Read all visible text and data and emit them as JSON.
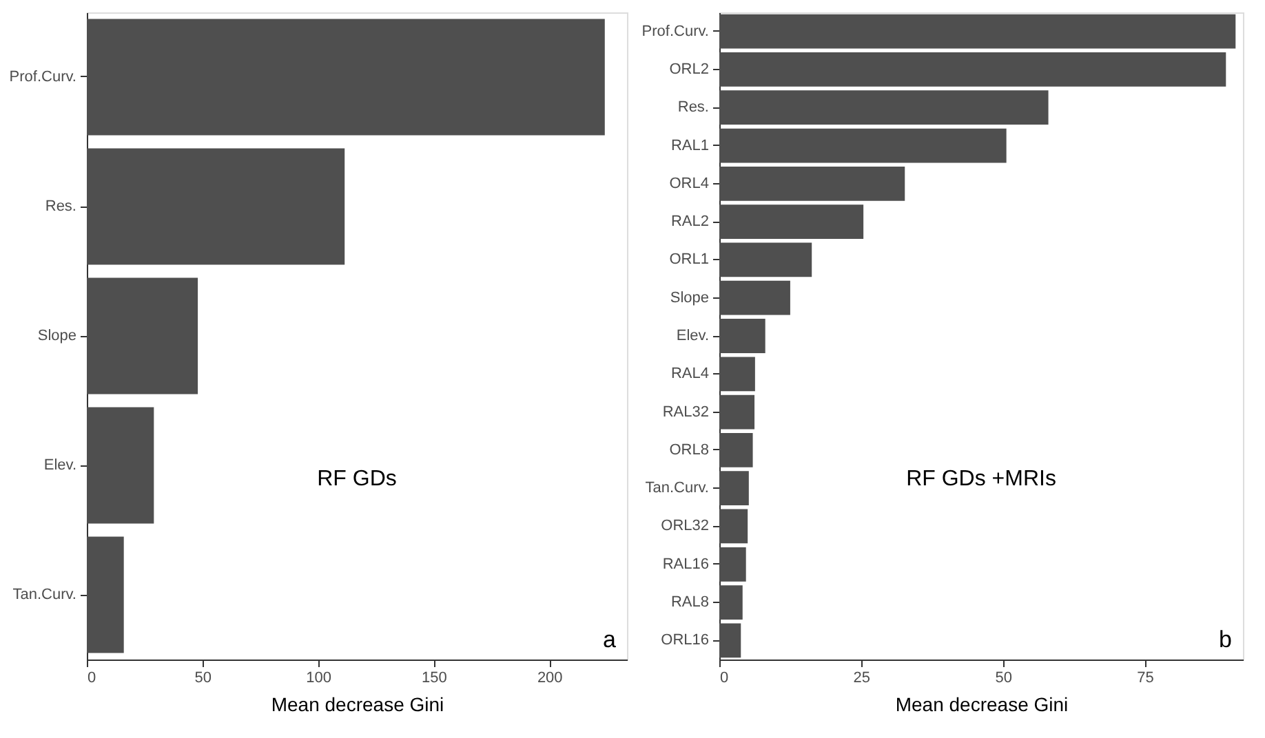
{
  "chart_data": [
    {
      "type": "bar",
      "orientation": "horizontal",
      "categories": [
        "Prof.Curv.",
        "Res.",
        "Slope",
        "Elev.",
        "Tan.Curv."
      ],
      "values": [
        224,
        111.5,
        48,
        29,
        16
      ],
      "color": "#4f4f4f",
      "xlim": [
        0,
        233.6
      ],
      "xticks": [
        0,
        50,
        100,
        150,
        200
      ],
      "xlabel": "Mean decrease Gini",
      "grid": false,
      "annotations": [
        "RF GDs",
        "a"
      ]
    },
    {
      "type": "bar",
      "orientation": "horizontal",
      "categories": [
        "Prof.Curv.",
        "ORL2",
        "Res.",
        "RAL1",
        "ORL4",
        "RAL2",
        "ORL1",
        "Slope",
        "Elev.",
        "RAL4",
        "RAL32",
        "ORL8",
        "Tan.Curv.",
        "ORL32",
        "RAL16",
        "RAL8",
        "ORL16"
      ],
      "values": [
        91,
        89.3,
        58,
        50.6,
        32.7,
        25.4,
        16.3,
        12.5,
        8.1,
        6.3,
        6.2,
        5.9,
        5.2,
        5.0,
        4.7,
        4.1,
        3.8
      ],
      "color": "#4f4f4f",
      "xlim": [
        0,
        92.3
      ],
      "xticks": [
        0,
        25,
        50,
        75
      ],
      "xlabel": "Mean decrease Gini",
      "grid": false,
      "annotations": [
        "RF GDs +MRIs",
        "b"
      ]
    }
  ]
}
